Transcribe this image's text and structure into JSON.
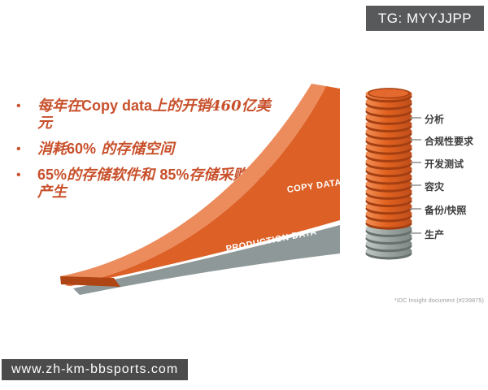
{
  "badge": {
    "text": "TG: MYYJJPP",
    "bg": "#58595B",
    "fg": "#FFFFFF"
  },
  "watermark": {
    "text": "www.zh-km-bbsports.com",
    "bg": "#4B4B4B",
    "fg": "#FFFFFF"
  },
  "bullets": {
    "dot": "•",
    "color": "#C8502B",
    "b1_pre": "每年在",
    "b1_bold": "Copy data",
    "b1_post": "上的开销460亿美元",
    "b2_pre": "消耗",
    "b2_bold": "60%",
    "b2_post": " 的存储空间",
    "b3_bold1": "65%",
    "b3_mid": "的存储软件和 ",
    "b3_bold2": "85%",
    "b3_post": "存储采购由此产生"
  },
  "wedge_chart": {
    "copy_label": "COPY DATA",
    "production_label": "PRODUCTION DATA",
    "copy_color": "#DD6127",
    "copy_highlight": "#EC8C5C",
    "copy_edge": "#AF4414",
    "production_color": "#8E9898",
    "label_color": "#FFFFFF"
  },
  "cylinder": {
    "copy_disks": 18,
    "production_disks": 4,
    "copy_color": "#E2621F",
    "production_color": "#9AA39F",
    "labels": [
      {
        "text": "分析"
      },
      {
        "text": "合规性要求"
      },
      {
        "text": "开发测试"
      },
      {
        "text": "容灾"
      },
      {
        "text": "备份/快照"
      },
      {
        "text": "生产"
      }
    ]
  },
  "footnote": {
    "text": "*IDC Insight document (#239875)"
  },
  "chart_data": {
    "type": "area",
    "title": "",
    "series": [
      {
        "name": "COPY DATA",
        "trend": "steep exponential growth wedge",
        "color": "#DD6127"
      },
      {
        "name": "PRODUCTION DATA",
        "trend": "shallow linear growth wedge",
        "color": "#8E9898"
      }
    ],
    "cylinder_stack": [
      {
        "segment": "copy data uses",
        "labels": [
          "分析",
          "合规性要求",
          "开发测试",
          "容灾",
          "备份/快照"
        ],
        "disks": 18,
        "color": "#E2621F"
      },
      {
        "segment": "production",
        "labels": [
          "生产"
        ],
        "disks": 4,
        "color": "#9AA39F"
      }
    ]
  }
}
